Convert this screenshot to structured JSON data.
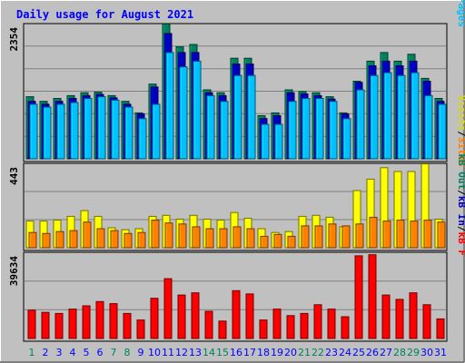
{
  "chart_data": [
    {
      "type": "bar",
      "title": "Daily usage for August 2021",
      "ymax_label": "2354",
      "ylim": [
        0,
        2354
      ],
      "categories": [
        "1",
        "2",
        "3",
        "4",
        "5",
        "6",
        "7",
        "8",
        "9",
        "10",
        "11",
        "12",
        "13",
        "14",
        "15",
        "16",
        "17",
        "18",
        "19",
        "20",
        "21",
        "22",
        "23",
        "24",
        "25",
        "26",
        "27",
        "28",
        "29",
        "30",
        "31"
      ],
      "weekend_days": [
        "1",
        "7",
        "8",
        "14",
        "15",
        "21",
        "22",
        "28",
        "29"
      ],
      "grid": true,
      "series": [
        {
          "name": "Hits",
          "color": "#00805c",
          "values": [
            1080,
            1000,
            1050,
            1100,
            1150,
            1160,
            1100,
            1000,
            800,
            1300,
            2350,
            1950,
            1990,
            1200,
            1150,
            1750,
            1750,
            750,
            800,
            1200,
            1170,
            1150,
            1080,
            800,
            1350,
            1700,
            1850,
            1700,
            1820,
            1400,
            1050
          ]
        },
        {
          "name": "Files",
          "color": "#0000c0",
          "values": [
            1000,
            950,
            1000,
            1050,
            1100,
            1120,
            1060,
            950,
            780,
            1250,
            2180,
            1850,
            1850,
            1150,
            1100,
            1650,
            1650,
            700,
            750,
            1150,
            1130,
            1100,
            1040,
            780,
            1330,
            1620,
            1700,
            1620,
            1700,
            1350,
            1000
          ]
        },
        {
          "name": "Pages",
          "color": "#00c0ff",
          "values": [
            950,
            900,
            950,
            980,
            1050,
            1080,
            1020,
            900,
            700,
            950,
            1850,
            1600,
            1700,
            1100,
            1000,
            1450,
            1450,
            600,
            600,
            1000,
            1050,
            1050,
            1000,
            700,
            1200,
            1450,
            1500,
            1450,
            1500,
            1100,
            950
          ]
        }
      ]
    },
    {
      "type": "bar",
      "ymax_label": "443",
      "ylim": [
        0,
        443
      ],
      "categories": [
        "1",
        "2",
        "3",
        "4",
        "5",
        "6",
        "7",
        "8",
        "9",
        "10",
        "11",
        "12",
        "13",
        "14",
        "15",
        "16",
        "17",
        "18",
        "19",
        "20",
        "21",
        "22",
        "23",
        "24",
        "25",
        "26",
        "27",
        "28",
        "29",
        "30",
        "31"
      ],
      "grid": true,
      "series": [
        {
          "name": "Visits",
          "color": "#ffff00",
          "values": [
            140,
            140,
            145,
            165,
            195,
            165,
            105,
            95,
            100,
            165,
            170,
            150,
            170,
            150,
            145,
            185,
            155,
            100,
            80,
            85,
            165,
            170,
            160,
            110,
            300,
            360,
            420,
            400,
            400,
            440,
            150
          ]
        },
        {
          "name": "Sites",
          "color": "#ff8000",
          "values": [
            80,
            75,
            85,
            90,
            135,
            100,
            90,
            75,
            80,
            145,
            130,
            125,
            110,
            100,
            100,
            110,
            100,
            60,
            70,
            60,
            115,
            115,
            125,
            115,
            125,
            160,
            140,
            145,
            140,
            145,
            135
          ]
        }
      ]
    },
    {
      "type": "bar",
      "ymax_label": "39634",
      "ylim": [
        0,
        39634
      ],
      "categories": [
        "1",
        "2",
        "3",
        "4",
        "5",
        "6",
        "7",
        "8",
        "9",
        "10",
        "11",
        "12",
        "13",
        "14",
        "15",
        "16",
        "17",
        "18",
        "19",
        "20",
        "21",
        "22",
        "23",
        "24",
        "25",
        "26",
        "27",
        "28",
        "29",
        "30",
        "31"
      ],
      "grid": true,
      "series": [
        {
          "name": "KBytes",
          "color": "#ff0000",
          "values": [
            13000,
            12000,
            11500,
            13500,
            15000,
            17000,
            16000,
            11500,
            8500,
            18500,
            27500,
            20000,
            21000,
            12500,
            8000,
            22000,
            20500,
            8500,
            13500,
            10500,
            11500,
            15500,
            13500,
            10000,
            38000,
            38500,
            20000,
            18000,
            21000,
            15500,
            9000
          ]
        }
      ]
    }
  ],
  "legends": {
    "top": [
      {
        "text": "Hits",
        "color": "#00805c"
      },
      {
        "text": "/",
        "color": "#000000"
      },
      {
        "text": "Files",
        "color": "#0000c0"
      },
      {
        "text": "/",
        "color": "#000000"
      },
      {
        "text": "Pages",
        "color": "#00c0ff"
      }
    ],
    "mid": [
      {
        "text": "Visits",
        "color": "#d8d800"
      },
      {
        "text": "/",
        "color": "#000000"
      },
      {
        "text": "Sites",
        "color": "#ff8000"
      }
    ],
    "bottom": [
      {
        "text": "kB Out",
        "color": "#00805c"
      },
      {
        "text": "/",
        "color": "#000000"
      },
      {
        "text": "kB In",
        "color": "#0000c0"
      },
      {
        "text": "/",
        "color": "#000000"
      },
      {
        "text": "kB F",
        "color": "#ff0000"
      }
    ]
  },
  "colors": {
    "background": "#c0c0c0",
    "title": "#0000ff",
    "weekday_label": "#0000ff",
    "weekend_label": "#00805c",
    "grid": "#808080"
  }
}
